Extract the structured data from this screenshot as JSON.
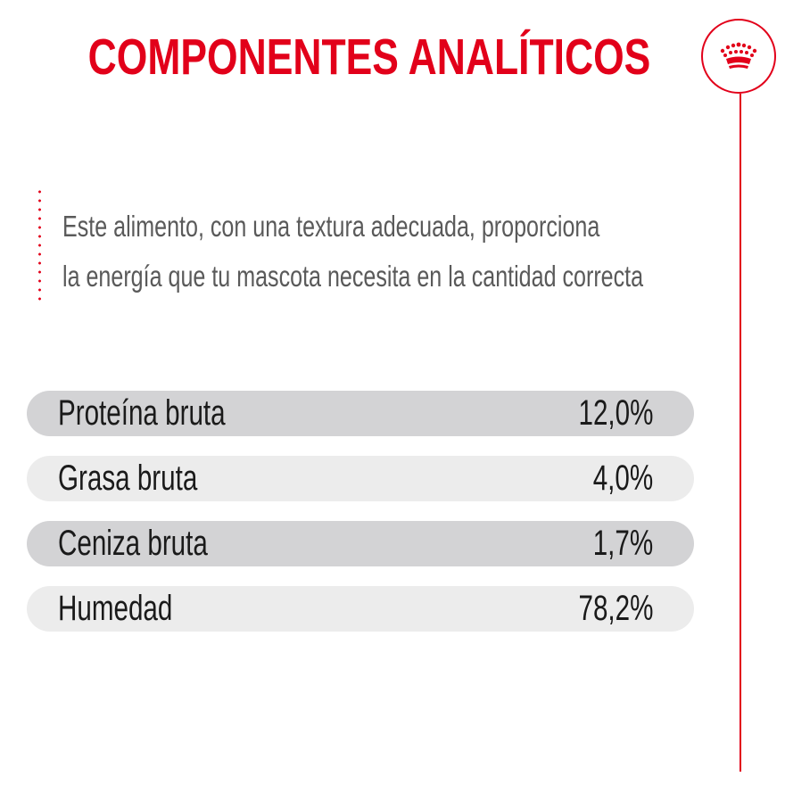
{
  "header": {
    "title": "COMPONENTES ANALÍTICOS",
    "logo_icon": "crown-icon"
  },
  "description": {
    "line1": "Este alimento, con una textura adecuada, proporciona",
    "line2": "la energía que tu mascota necesita en la cantidad correcta"
  },
  "components": [
    {
      "label": "Proteína bruta",
      "value": "12,0%"
    },
    {
      "label": "Grasa bruta",
      "value": "4,0%"
    },
    {
      "label": "Ceniza bruta",
      "value": "1,7%"
    },
    {
      "label": "Humedad",
      "value": "78,2%"
    }
  ],
  "colors": {
    "accent": "#e2001a",
    "row_dark": "#d3d3d5",
    "row_light": "#ececec",
    "text": "#1a1a1a",
    "description_text": "#5a5a5a"
  }
}
